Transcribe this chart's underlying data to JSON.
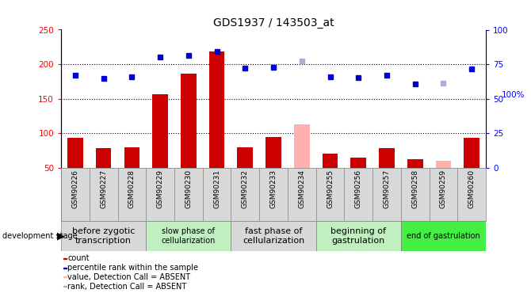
{
  "title": "GDS1937 / 143503_at",
  "samples": [
    "GSM90226",
    "GSM90227",
    "GSM90228",
    "GSM90229",
    "GSM90230",
    "GSM90231",
    "GSM90232",
    "GSM90233",
    "GSM90234",
    "GSM90255",
    "GSM90256",
    "GSM90257",
    "GSM90258",
    "GSM90259",
    "GSM90260"
  ],
  "bar_values": [
    93,
    78,
    80,
    157,
    186,
    219,
    80,
    95,
    null,
    70,
    65,
    78,
    62,
    null,
    93
  ],
  "absent_bar_values": [
    null,
    null,
    null,
    null,
    null,
    null,
    null,
    null,
    113,
    null,
    null,
    null,
    null,
    60,
    null
  ],
  "rank_values": [
    184,
    180,
    182,
    211,
    213,
    218,
    194,
    196,
    null,
    182,
    181,
    184,
    172,
    null,
    193
  ],
  "absent_rank_values": [
    null,
    null,
    null,
    null,
    null,
    null,
    null,
    null,
    205,
    null,
    null,
    null,
    null,
    173,
    null
  ],
  "bar_color": "#cc0000",
  "absent_bar_color": "#ffb0b0",
  "rank_color": "#0000cc",
  "absent_rank_color": "#aab0d8",
  "ylim_left": [
    50,
    250
  ],
  "ylim_right": [
    0,
    100
  ],
  "y_ticks_left": [
    50,
    100,
    150,
    200,
    250
  ],
  "y_ticks_right": [
    0,
    25,
    50,
    75,
    100
  ],
  "group_spans": [
    {
      "start": 0,
      "end": 2,
      "color": "#d8d8d8",
      "label": "before zygotic\ntranscription",
      "fontsize": 8
    },
    {
      "start": 3,
      "end": 5,
      "color": "#c0f0c0",
      "label": "slow phase of\ncellularization",
      "fontsize": 7
    },
    {
      "start": 6,
      "end": 8,
      "color": "#d8d8d8",
      "label": "fast phase of\ncellularization",
      "fontsize": 8
    },
    {
      "start": 9,
      "end": 11,
      "color": "#c0f0c0",
      "label": "beginning of\ngastrulation",
      "fontsize": 8
    },
    {
      "start": 12,
      "end": 14,
      "color": "#44ee44",
      "label": "end of gastrulation",
      "fontsize": 7
    }
  ],
  "legend_items": [
    {
      "label": "count",
      "color": "#cc0000",
      "marker": "s"
    },
    {
      "label": "percentile rank within the sample",
      "color": "#0000cc",
      "marker": "s"
    },
    {
      "label": "value, Detection Call = ABSENT",
      "color": "#ffb0b0",
      "marker": "s"
    },
    {
      "label": "rank, Detection Call = ABSENT",
      "color": "#aab0d8",
      "marker": "s"
    }
  ]
}
